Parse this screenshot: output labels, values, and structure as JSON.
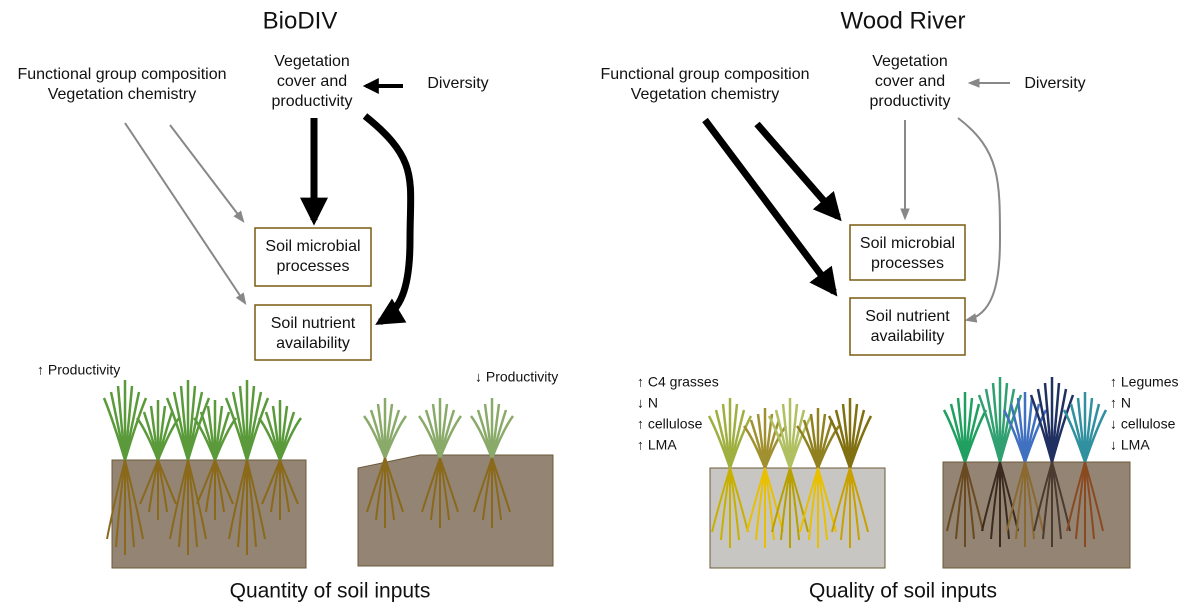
{
  "panels": [
    {
      "title": "BioDIV",
      "composition": [
        "Functional group composition",
        "Vegetation chemistry"
      ],
      "cover": [
        "Vegetation",
        "cover and",
        "productivity"
      ],
      "diversity": "Diversity",
      "microbial": [
        "Soil microbial",
        "processes"
      ],
      "nutrient": [
        "Soil nutrient",
        "availability"
      ],
      "left_annotation": [
        "↑ Productivity"
      ],
      "right_annotation": [
        "↓ Productivity"
      ],
      "caption": "Quantity of soil inputs"
    },
    {
      "title": "Wood River",
      "composition": [
        "Functional group composition",
        "Vegetation chemistry"
      ],
      "cover": [
        "Vegetation",
        "cover and",
        "productivity"
      ],
      "diversity": "Diversity",
      "microbial": [
        "Soil microbial",
        "processes"
      ],
      "nutrient": [
        "Soil nutrient",
        "availability"
      ],
      "left_annotation": [
        "↑ C4 grasses",
        "↓ N",
        "↑ cellulose",
        "↑ LMA"
      ],
      "right_annotation": [
        "↑ Legumes",
        "↑ N",
        "↓ cellulose",
        "↓ LMA"
      ],
      "caption": "Quality of soil inputs"
    }
  ]
}
